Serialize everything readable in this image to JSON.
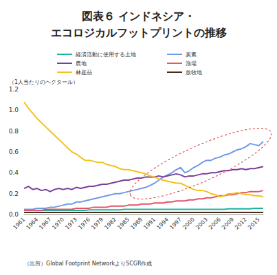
{
  "chart_data": {
    "type": "line",
    "title": "図表６ インドネシア・\nエコロジカルフットプリントの推移",
    "y_label": "（1人当たりのヘクタール）",
    "source": "（出所）Global Footprint NetworkよりSCGR作成",
    "categories": [
      "1961",
      null,
      null,
      "1964",
      null,
      null,
      "1967",
      null,
      null,
      "1970",
      null,
      null,
      "1973",
      null,
      null,
      "1976",
      null,
      null,
      "1979",
      null,
      null,
      "1982",
      null,
      null,
      "1985",
      null,
      null,
      "1988",
      null,
      null,
      "1991",
      null,
      null,
      "1994",
      null,
      null,
      "1997",
      null,
      null,
      "2000",
      null,
      null,
      "2003",
      null,
      null,
      "2006",
      null,
      null,
      "2009",
      null,
      null,
      "2012",
      null,
      null,
      "2015",
      null
    ],
    "series": [
      {
        "name": "経済活動に使用する土地",
        "color": "#20b2a0",
        "values": [
          0.04,
          0.04,
          0.04,
          0.04,
          0.04,
          0.04,
          0.04,
          0.04,
          0.04,
          0.04,
          0.04,
          0.04,
          0.04,
          0.04,
          0.04,
          0.045,
          0.045,
          0.045,
          0.045,
          0.045,
          0.045,
          0.045,
          0.045,
          0.05,
          0.05,
          0.05,
          0.05,
          0.05,
          0.05,
          0.05,
          0.05,
          0.05,
          0.05,
          0.05,
          0.05,
          0.05,
          0.05,
          0.05,
          0.05,
          0.05,
          0.05,
          0.05,
          0.05,
          0.05,
          0.05,
          0.05,
          0.05,
          0.055,
          0.055,
          0.055,
          0.055,
          0.055,
          0.055,
          0.06,
          0.06,
          0.06
        ]
      },
      {
        "name": "炭素",
        "color": "#6f9ae8",
        "values": [
          0.05,
          0.05,
          0.05,
          0.06,
          0.06,
          0.06,
          0.07,
          0.07,
          0.08,
          0.09,
          0.1,
          0.1,
          0.12,
          0.12,
          0.13,
          0.14,
          0.15,
          0.16,
          0.17,
          0.18,
          0.19,
          0.2,
          0.2,
          0.21,
          0.22,
          0.23,
          0.24,
          0.25,
          0.26,
          0.28,
          0.3,
          0.33,
          0.36,
          0.38,
          0.4,
          0.43,
          0.45,
          0.4,
          0.42,
          0.45,
          0.47,
          0.5,
          0.52,
          0.52,
          0.54,
          0.55,
          0.57,
          0.58,
          0.6,
          0.62,
          0.63,
          0.65,
          0.68,
          0.67,
          0.66,
          0.7
        ]
      },
      {
        "name": "農地",
        "color": "#7a3f9a",
        "values": [
          0.25,
          0.27,
          0.24,
          0.25,
          0.23,
          0.24,
          0.22,
          0.24,
          0.25,
          0.24,
          0.25,
          0.24,
          0.26,
          0.25,
          0.26,
          0.27,
          0.27,
          0.28,
          0.29,
          0.29,
          0.3,
          0.31,
          0.32,
          0.33,
          0.33,
          0.34,
          0.35,
          0.35,
          0.36,
          0.36,
          0.36,
          0.37,
          0.36,
          0.37,
          0.38,
          0.39,
          0.38,
          0.36,
          0.37,
          0.37,
          0.38,
          0.39,
          0.39,
          0.4,
          0.4,
          0.41,
          0.42,
          0.42,
          0.43,
          0.43,
          0.44,
          0.43,
          0.44,
          0.44,
          0.45,
          0.46
        ]
      },
      {
        "name": "漁場",
        "color": "#e0566a",
        "values": [
          0.04,
          0.04,
          0.04,
          0.04,
          0.04,
          0.05,
          0.05,
          0.05,
          0.05,
          0.05,
          0.05,
          0.05,
          0.06,
          0.06,
          0.06,
          0.06,
          0.07,
          0.07,
          0.07,
          0.07,
          0.08,
          0.08,
          0.08,
          0.08,
          0.09,
          0.09,
          0.09,
          0.1,
          0.1,
          0.1,
          0.11,
          0.11,
          0.11,
          0.12,
          0.12,
          0.13,
          0.13,
          0.13,
          0.14,
          0.14,
          0.15,
          0.15,
          0.16,
          0.16,
          0.17,
          0.18,
          0.18,
          0.19,
          0.19,
          0.2,
          0.21,
          0.21,
          0.22,
          0.22,
          0.22,
          0.23
        ]
      },
      {
        "name": "林産品",
        "color": "#f2c31a",
        "values": [
          1.08,
          1.02,
          0.97,
          0.92,
          0.88,
          0.84,
          0.8,
          0.76,
          0.72,
          0.68,
          0.64,
          0.6,
          0.58,
          0.55,
          0.52,
          0.52,
          0.51,
          0.5,
          0.5,
          0.48,
          0.47,
          0.46,
          0.44,
          0.43,
          0.43,
          0.42,
          0.41,
          0.4,
          0.39,
          0.37,
          0.36,
          0.34,
          0.33,
          0.32,
          0.31,
          0.3,
          0.3,
          0.28,
          0.26,
          0.24,
          0.23,
          0.23,
          0.22,
          0.2,
          0.19,
          0.17,
          0.18,
          0.2,
          0.2,
          0.21,
          0.2,
          0.19,
          0.19,
          0.18,
          0.18,
          0.17
        ]
      },
      {
        "name": "放牧地",
        "color": "#4a2b1a",
        "values": [
          0.02,
          0.02,
          0.02,
          0.02,
          0.02,
          0.02,
          0.02,
          0.02,
          0.02,
          0.02,
          0.02,
          0.02,
          0.02,
          0.02,
          0.02,
          0.02,
          0.02,
          0.02,
          0.02,
          0.02,
          0.02,
          0.02,
          0.02,
          0.02,
          0.02,
          0.02,
          0.02,
          0.02,
          0.02,
          0.02,
          0.02,
          0.02,
          0.02,
          0.02,
          0.02,
          0.02,
          0.02,
          0.02,
          0.02,
          0.02,
          0.02,
          0.02,
          0.02,
          0.02,
          0.02,
          0.02,
          0.02,
          0.02,
          0.02,
          0.02,
          0.02,
          0.02,
          0.02,
          0.02,
          0.02,
          0.02
        ]
      }
    ],
    "ylim": [
      0,
      1.2
    ],
    "yticks": [
      {
        "value": 0,
        "label": "0.0"
      },
      0.2,
      0.4,
      0.6,
      0.8,
      {
        "value": 1,
        "label": "1.0"
      },
      1.2
    ],
    "grid": false,
    "legend": "top"
  }
}
